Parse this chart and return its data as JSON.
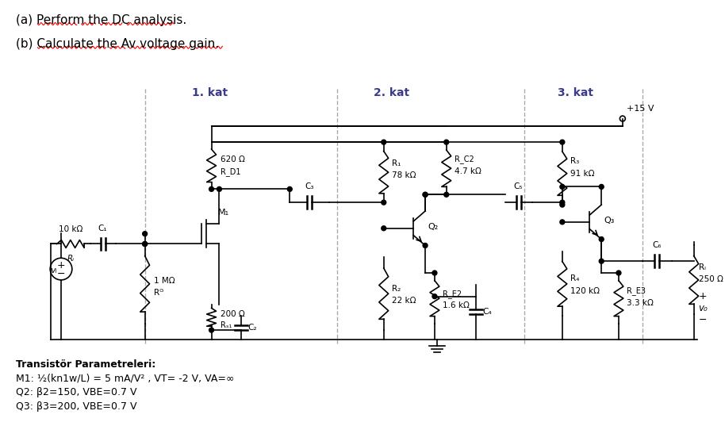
{
  "title_a": "(a) Perform the DC analysis.",
  "title_b": "(b) Calculate the Av voltage gain.",
  "kat1_label": "1. kat",
  "kat2_label": "2. kat",
  "kat3_label": "3. kat",
  "vdd_label": "+15 V",
  "params_title": "Transistör Parametreleri:",
  "params_m1": "M1: ½(kn1w/L) = 5 mA/V² , VT= -2 V, VA=∞",
  "params_q2": "Q2: β2=150, VBE=0.7 V",
  "params_q3": "Q3: β3=200, VBE=0.7 V",
  "bg_color": "#ffffff",
  "line_color": "#000000",
  "kat_color": "#3a3a8a"
}
